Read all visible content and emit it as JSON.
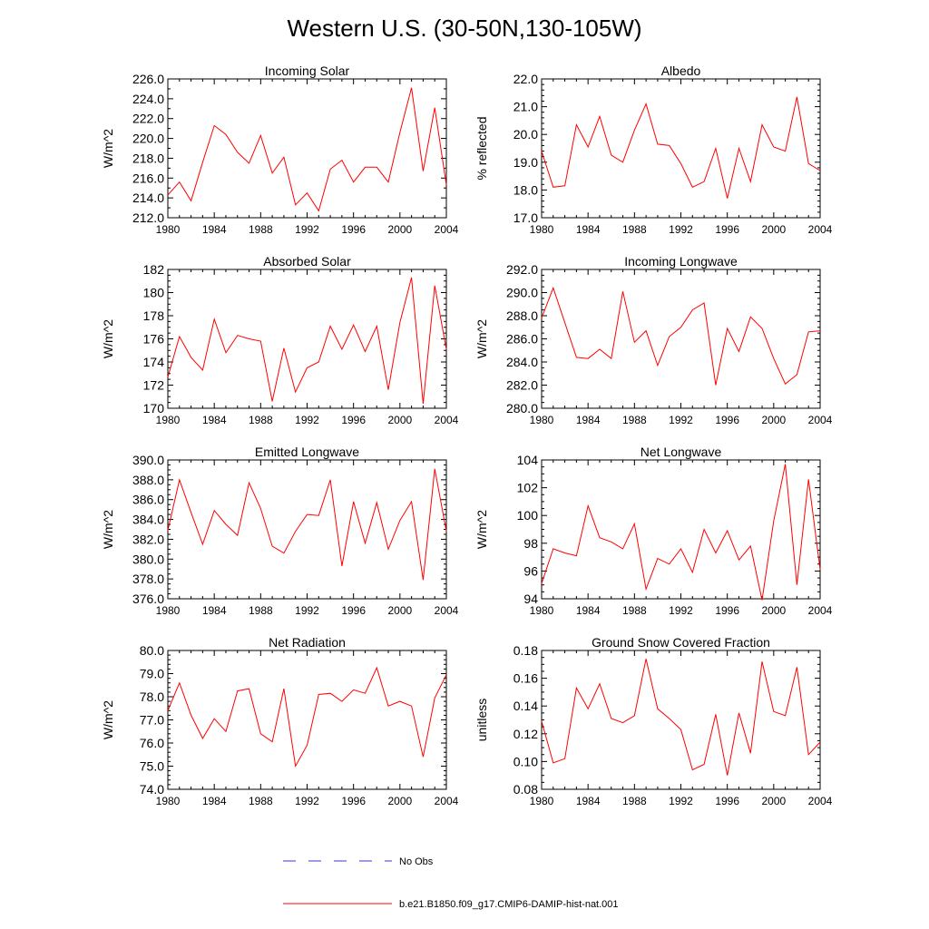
{
  "figure": {
    "title": "Western U.S. (30-50N,130-105W)",
    "legend": [
      {
        "label": "No Obs",
        "color": "#3a3acc",
        "style": "dashed"
      },
      {
        "label": "b.e21.B1850.f09_g17.CMIP6-DAMIP-hist-nat.001",
        "color": "#ff0000",
        "style": "solid"
      }
    ]
  },
  "chart_data": [
    {
      "type": "line",
      "title": "Incoming Solar",
      "xlabel": "",
      "ylabel": "W/m^2",
      "xlim": [
        1980,
        2004
      ],
      "ylim": [
        212,
        226
      ],
      "xticks": [
        1980,
        1984,
        1988,
        1992,
        1996,
        2000,
        2004
      ],
      "yticks": [
        "212.0",
        "214.0",
        "216.0",
        "218.0",
        "220.0",
        "222.0",
        "224.0",
        "226.0"
      ],
      "ytick_values": [
        212,
        214,
        216,
        218,
        220,
        222,
        224,
        226
      ],
      "yminor": 1,
      "color": "#ff0000",
      "x": [
        1980,
        1981,
        1982,
        1983,
        1984,
        1985,
        1986,
        1987,
        1988,
        1989,
        1990,
        1991,
        1992,
        1993,
        1994,
        1995,
        1996,
        1997,
        1998,
        1999,
        2000,
        2001,
        2002,
        2003,
        2004
      ],
      "y": [
        214.3,
        215.6,
        213.7,
        217.6,
        221.3,
        220.4,
        218.6,
        217.5,
        220.3,
        216.5,
        218.1,
        213.3,
        214.5,
        212.7,
        216.9,
        217.8,
        215.6,
        217.1,
        217.1,
        215.6,
        220.6,
        225.1,
        216.7,
        223.1,
        215.3
      ]
    },
    {
      "type": "line",
      "title": "Albedo",
      "xlabel": "",
      "ylabel": "% reflected",
      "xlim": [
        1980,
        2004
      ],
      "ylim": [
        17,
        22
      ],
      "xticks": [
        1980,
        1984,
        1988,
        1992,
        1996,
        2000,
        2004
      ],
      "yticks": [
        "17.0",
        "18.0",
        "19.0",
        "20.0",
        "21.0",
        "22.0"
      ],
      "ytick_values": [
        17,
        18,
        19,
        20,
        21,
        22
      ],
      "yminor": 0.2,
      "color": "#ff0000",
      "x": [
        1980,
        1981,
        1982,
        1983,
        1984,
        1985,
        1986,
        1987,
        1988,
        1989,
        1990,
        1991,
        1992,
        1993,
        1994,
        1995,
        1996,
        1997,
        1998,
        1999,
        2000,
        2001,
        2002,
        2003,
        2004
      ],
      "y": [
        19.4,
        18.1,
        18.15,
        20.35,
        19.55,
        20.65,
        19.25,
        19.0,
        20.15,
        21.1,
        19.65,
        19.6,
        18.95,
        18.1,
        18.3,
        19.5,
        17.7,
        19.5,
        18.3,
        20.35,
        19.55,
        19.4,
        21.35,
        18.95,
        18.7
      ]
    },
    {
      "type": "line",
      "title": "Absorbed Solar",
      "xlabel": "",
      "ylabel": "W/m^2",
      "xlim": [
        1980,
        2004
      ],
      "ylim": [
        170,
        182
      ],
      "xticks": [
        1980,
        1984,
        1988,
        1992,
        1996,
        2000,
        2004
      ],
      "yticks": [
        "170",
        "172",
        "174",
        "176",
        "178",
        "180",
        "182"
      ],
      "ytick_values": [
        170,
        172,
        174,
        176,
        178,
        180,
        182
      ],
      "yminor": 0.5,
      "color": "#ff0000",
      "x": [
        1980,
        1981,
        1982,
        1983,
        1984,
        1985,
        1986,
        1987,
        1988,
        1989,
        1990,
        1991,
        1992,
        1993,
        1994,
        1995,
        1996,
        1997,
        1998,
        1999,
        2000,
        2001,
        2002,
        2003,
        2004
      ],
      "y": [
        172.7,
        176.2,
        174.4,
        173.3,
        177.7,
        174.8,
        176.3,
        176.0,
        175.8,
        170.6,
        175.2,
        171.4,
        173.5,
        174.0,
        177.1,
        175.1,
        177.2,
        174.9,
        177.1,
        171.6,
        177.4,
        181.3,
        170.4,
        180.6,
        175.1
      ]
    },
    {
      "type": "line",
      "title": "Incoming Longwave",
      "xlabel": "",
      "ylabel": "W/m^2",
      "xlim": [
        1980,
        2004
      ],
      "ylim": [
        280,
        292
      ],
      "xticks": [
        1980,
        1984,
        1988,
        1992,
        1996,
        2000,
        2004
      ],
      "yticks": [
        "280.0",
        "282.0",
        "284.0",
        "286.0",
        "288.0",
        "290.0",
        "292.0"
      ],
      "ytick_values": [
        280,
        282,
        284,
        286,
        288,
        290,
        292
      ],
      "yminor": 0.5,
      "color": "#ff0000",
      "x": [
        1980,
        1981,
        1982,
        1983,
        1984,
        1985,
        1986,
        1987,
        1988,
        1989,
        1990,
        1991,
        1992,
        1993,
        1994,
        1995,
        1996,
        1997,
        1998,
        1999,
        2000,
        2001,
        2002,
        2003,
        2004
      ],
      "y": [
        287.8,
        290.4,
        287.4,
        284.4,
        284.3,
        285.1,
        284.3,
        290.1,
        285.7,
        286.7,
        283.7,
        286.2,
        287.0,
        288.5,
        289.1,
        282.0,
        286.9,
        284.9,
        287.9,
        286.9,
        284.3,
        282.1,
        282.9,
        286.6,
        286.7
      ]
    },
    {
      "type": "line",
      "title": "Emitted Longwave",
      "xlabel": "",
      "ylabel": "W/m^2",
      "xlim": [
        1980,
        2004
      ],
      "ylim": [
        376,
        390
      ],
      "xticks": [
        1980,
        1984,
        1988,
        1992,
        1996,
        2000,
        2004
      ],
      "yticks": [
        "376.0",
        "378.0",
        "380.0",
        "382.0",
        "384.0",
        "386.0",
        "388.0",
        "390.0"
      ],
      "ytick_values": [
        376,
        378,
        380,
        382,
        384,
        386,
        388,
        390
      ],
      "yminor": 0.5,
      "color": "#ff0000",
      "x": [
        1980,
        1981,
        1982,
        1983,
        1984,
        1985,
        1986,
        1987,
        1988,
        1989,
        1990,
        1991,
        1992,
        1993,
        1994,
        1995,
        1996,
        1997,
        1998,
        1999,
        2000,
        2001,
        2002,
        2003,
        2004
      ],
      "y": [
        382.9,
        388.0,
        384.7,
        381.5,
        384.9,
        383.5,
        382.4,
        387.7,
        385.1,
        381.3,
        380.6,
        382.8,
        384.5,
        384.4,
        388.0,
        379.3,
        385.8,
        381.6,
        385.7,
        381.0,
        383.9,
        385.8,
        377.9,
        389.1,
        382.8
      ]
    },
    {
      "type": "line",
      "title": "Net Longwave",
      "xlabel": "",
      "ylabel": "W/m^2",
      "xlim": [
        1980,
        2004
      ],
      "ylim": [
        94,
        104
      ],
      "xticks": [
        1980,
        1984,
        1988,
        1992,
        1996,
        2000,
        2004
      ],
      "yticks": [
        "94",
        "96",
        "98",
        "100",
        "102",
        "104"
      ],
      "ytick_values": [
        94,
        96,
        98,
        100,
        102,
        104
      ],
      "yminor": 0.5,
      "color": "#ff0000",
      "x": [
        1980,
        1981,
        1982,
        1983,
        1984,
        1985,
        1986,
        1987,
        1988,
        1989,
        1990,
        1991,
        1992,
        1993,
        1994,
        1995,
        1996,
        1997,
        1998,
        1999,
        2000,
        2001,
        2002,
        2003,
        2004
      ],
      "y": [
        95.1,
        97.6,
        97.3,
        97.1,
        100.7,
        98.4,
        98.1,
        97.6,
        99.4,
        94.7,
        96.9,
        96.5,
        97.6,
        95.9,
        99.0,
        97.3,
        98.9,
        96.8,
        97.8,
        93.9,
        99.6,
        103.7,
        95.0,
        102.6,
        96.1
      ]
    },
    {
      "type": "line",
      "title": "Net Radiation",
      "xlabel": "",
      "ylabel": "W/m^2",
      "xlim": [
        1980,
        2004
      ],
      "ylim": [
        74,
        80
      ],
      "xticks": [
        1980,
        1984,
        1988,
        1992,
        1996,
        2000,
        2004
      ],
      "yticks": [
        "74.0",
        "75.0",
        "76.0",
        "77.0",
        "78.0",
        "79.0",
        "80.0"
      ],
      "ytick_values": [
        74,
        75,
        76,
        77,
        78,
        79,
        80
      ],
      "yminor": 0.2,
      "color": "#ff0000",
      "x": [
        1980,
        1981,
        1982,
        1983,
        1984,
        1985,
        1986,
        1987,
        1988,
        1989,
        1990,
        1991,
        1992,
        1993,
        1994,
        1995,
        1996,
        1997,
        1998,
        1999,
        2000,
        2001,
        2002,
        2003,
        2004
      ],
      "y": [
        77.4,
        78.6,
        77.2,
        76.2,
        77.05,
        76.5,
        78.25,
        78.35,
        76.4,
        76.05,
        78.35,
        75.0,
        75.9,
        78.1,
        78.15,
        77.8,
        78.3,
        78.15,
        79.25,
        77.6,
        77.8,
        77.6,
        75.4,
        77.95,
        78.95
      ]
    },
    {
      "type": "line",
      "title": "Ground Snow Covered Fraction",
      "xlabel": "",
      "ylabel": "unitless",
      "xlim": [
        1980,
        2004
      ],
      "ylim": [
        0.08,
        0.18
      ],
      "xticks": [
        1980,
        1984,
        1988,
        1992,
        1996,
        2000,
        2004
      ],
      "yticks": [
        "0.08",
        "0.10",
        "0.12",
        "0.14",
        "0.16",
        "0.18"
      ],
      "ytick_values": [
        0.08,
        0.1,
        0.12,
        0.14,
        0.16,
        0.18
      ],
      "yminor": 0.005,
      "color": "#ff0000",
      "x": [
        1980,
        1981,
        1982,
        1983,
        1984,
        1985,
        1986,
        1987,
        1988,
        1989,
        1990,
        1991,
        1992,
        1993,
        1994,
        1995,
        1996,
        1997,
        1998,
        1999,
        2000,
        2001,
        2002,
        2003,
        2004
      ],
      "y": [
        0.129,
        0.099,
        0.102,
        0.153,
        0.138,
        0.156,
        0.131,
        0.128,
        0.133,
        0.174,
        0.138,
        0.131,
        0.123,
        0.094,
        0.098,
        0.134,
        0.09,
        0.135,
        0.106,
        0.172,
        0.136,
        0.133,
        0.168,
        0.105,
        0.114
      ]
    }
  ]
}
